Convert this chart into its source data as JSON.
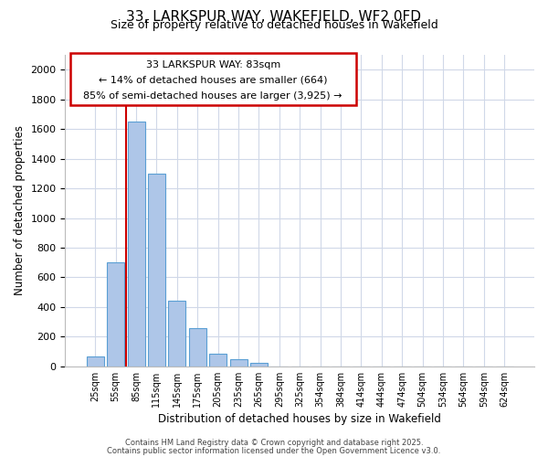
{
  "title_line1": "33, LARKSPUR WAY, WAKEFIELD, WF2 0FD",
  "title_line2": "Size of property relative to detached houses in Wakefield",
  "xlabel": "Distribution of detached houses by size in Wakefield",
  "ylabel": "Number of detached properties",
  "bar_values": [
    65,
    700,
    1650,
    1300,
    440,
    255,
    85,
    50,
    25,
    0,
    0,
    0,
    0,
    0,
    0,
    0,
    0,
    0,
    0,
    0,
    0
  ],
  "categories": [
    "25sqm",
    "55sqm",
    "85sqm",
    "115sqm",
    "145sqm",
    "175sqm",
    "205sqm",
    "235sqm",
    "265sqm",
    "295sqm",
    "325sqm",
    "354sqm",
    "384sqm",
    "414sqm",
    "444sqm",
    "474sqm",
    "504sqm",
    "534sqm",
    "564sqm",
    "594sqm",
    "624sqm"
  ],
  "bar_color": "#aec6e8",
  "bar_edge_color": "#5a9fd4",
  "property_line_color": "#cc0000",
  "annotation_line1": "33 LARKSPUR WAY: 83sqm",
  "annotation_line2": "← 14% of detached houses are smaller (664)",
  "annotation_line3": "85% of semi-detached houses are larger (3,925) →",
  "ylim": [
    0,
    2100
  ],
  "yticks": [
    0,
    200,
    400,
    600,
    800,
    1000,
    1200,
    1400,
    1600,
    1800,
    2000
  ],
  "footer_line1": "Contains HM Land Registry data © Crown copyright and database right 2025.",
  "footer_line2": "Contains public sector information licensed under the Open Government Licence v3.0.",
  "bg_color": "#ffffff",
  "grid_color": "#d0d8e8"
}
